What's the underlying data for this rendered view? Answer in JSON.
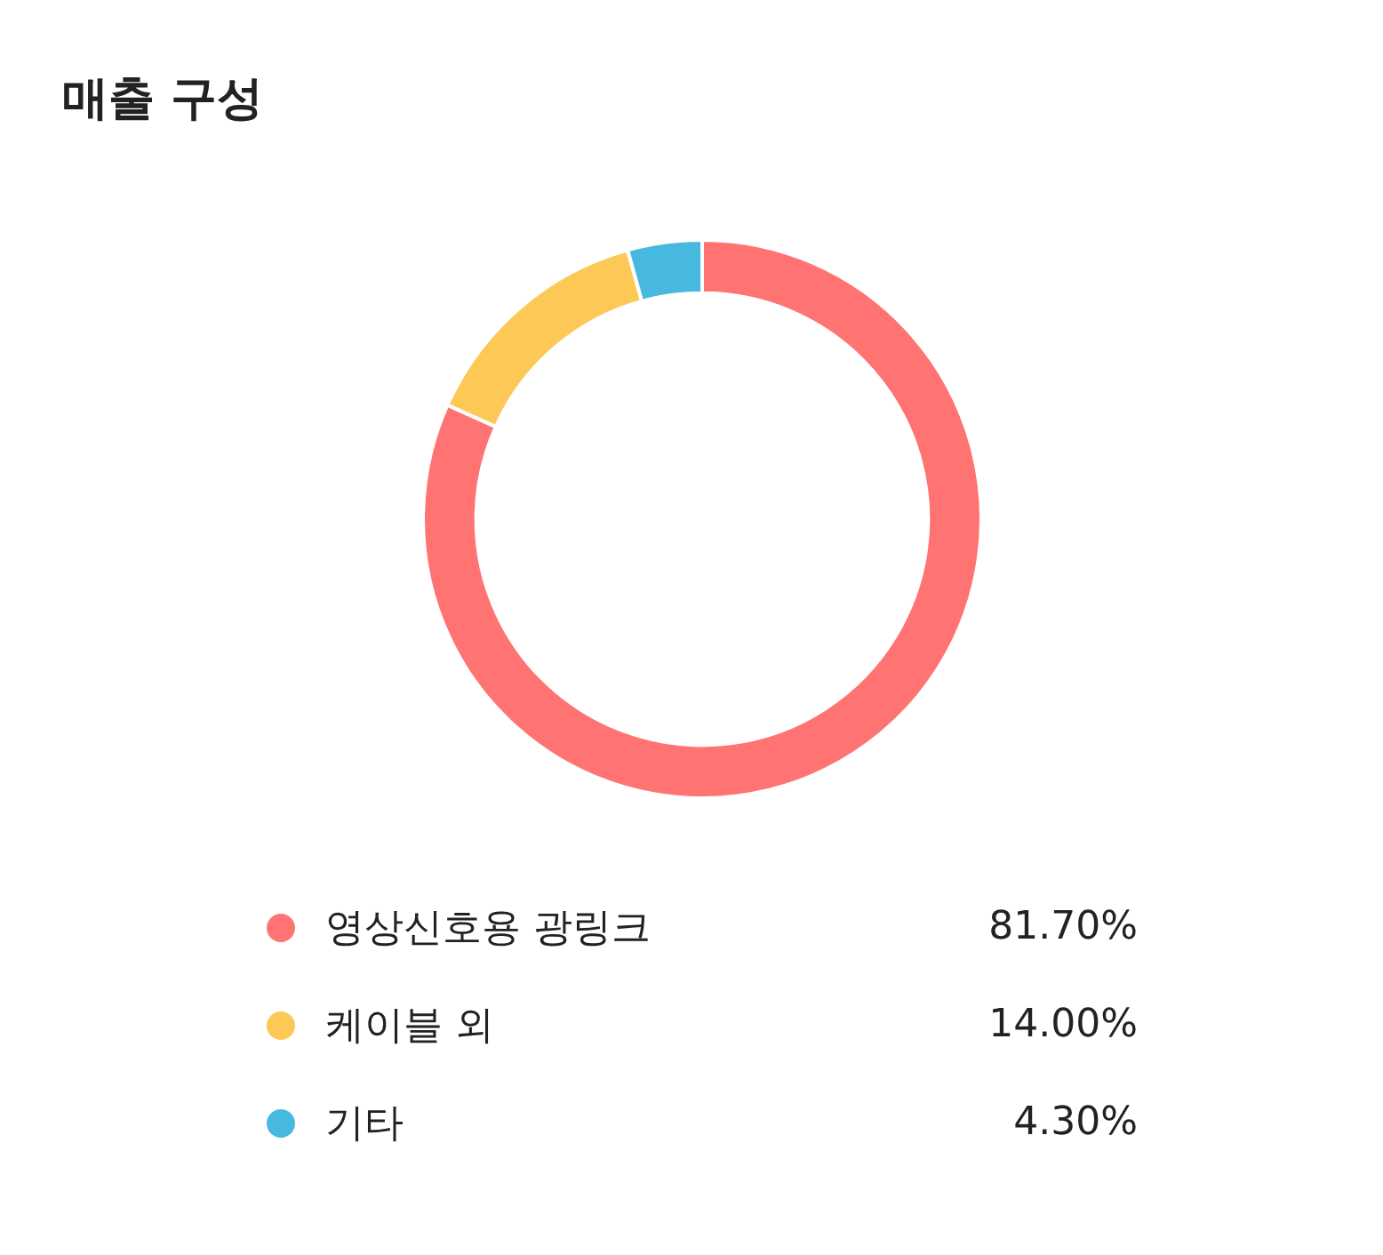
{
  "chart_data": {
    "type": "donut",
    "title": "매출 구성",
    "categories": [
      "영상신호용 광링크",
      "케이블 외",
      "기타"
    ],
    "values": [
      81.7,
      14.0,
      4.3
    ],
    "value_labels": [
      "81.70%",
      "14.00%",
      "4.30%"
    ],
    "colors": [
      "#ff7473",
      "#fec857",
      "#47b8e0"
    ],
    "legend": "bottom"
  }
}
